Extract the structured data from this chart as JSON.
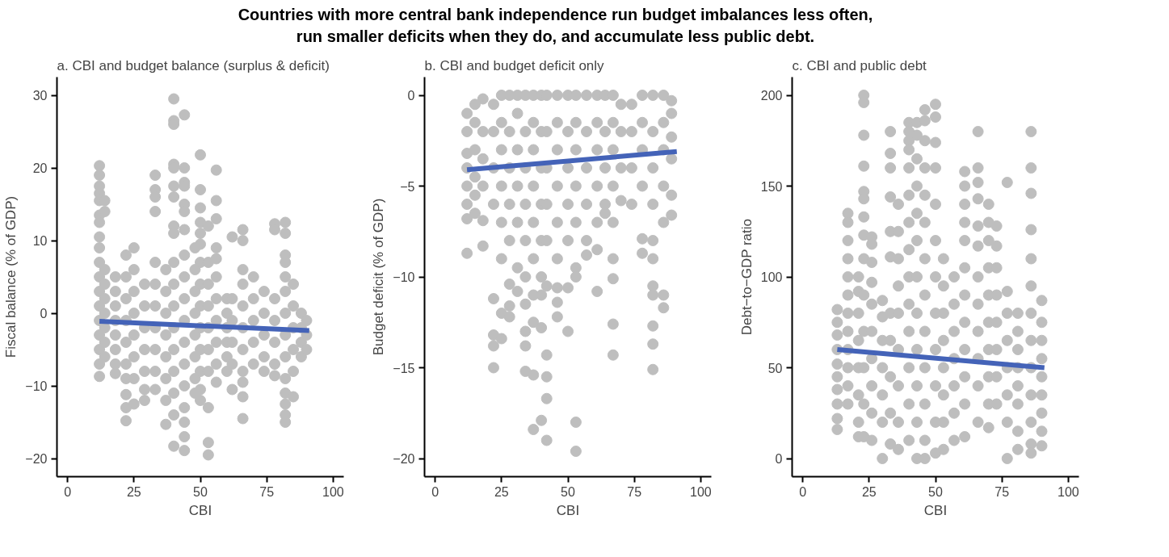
{
  "chart_data": [
    {
      "type": "scatter",
      "annotations": [
        "Countries with more central bank independence run budget imbalances less often,\nrun smaller deficits when they do, and accumulate less public debt."
      ],
      "title": "a. CBI and budget balance (surplus & deficit)",
      "xlabel": "CBI",
      "ylabel": "Fiscal balance (% of GDP)",
      "xlim": [
        -4,
        104
      ],
      "ylim": [
        -22.5,
        32.5
      ],
      "xticks": [
        0,
        25,
        50,
        75,
        100
      ],
      "yticks": [
        -20,
        -10,
        0,
        10,
        20,
        30
      ],
      "grid": false,
      "marker": "circle",
      "series": [
        {
          "color": "#bebebe",
          "x": [
            12,
            12,
            12,
            12,
            12,
            12,
            12,
            12,
            12,
            12,
            12,
            12,
            12,
            12,
            12,
            12,
            12,
            12,
            14,
            14,
            14,
            14,
            14,
            14,
            14,
            14,
            14,
            18,
            18,
            18,
            18,
            18,
            18,
            18,
            18,
            22,
            22,
            22,
            22,
            22,
            22,
            22,
            22,
            22,
            22,
            25,
            25,
            25,
            25,
            25,
            25,
            25,
            25,
            29,
            29,
            29,
            29,
            29,
            29,
            29,
            33,
            33,
            33,
            33,
            33,
            33,
            33,
            33,
            33,
            33,
            33,
            37,
            37,
            37,
            37,
            37,
            37,
            37,
            37,
            40,
            40,
            40,
            40,
            40,
            40,
            40,
            40,
            40,
            40,
            40,
            40,
            40,
            40,
            40,
            40,
            40,
            40,
            44,
            44,
            44,
            44,
            44,
            44,
            44,
            44,
            44,
            44,
            44,
            44,
            44,
            44,
            44,
            44,
            44,
            44,
            48,
            48,
            48,
            48,
            48,
            48,
            48,
            48,
            50,
            50,
            50,
            50,
            50,
            50,
            50,
            50,
            50,
            50,
            50,
            50,
            50,
            50,
            53,
            53,
            53,
            53,
            53,
            53,
            53,
            53,
            53,
            53,
            56,
            56,
            56,
            56,
            56,
            56,
            56,
            56,
            56,
            56,
            56,
            60,
            60,
            60,
            60,
            60,
            60,
            62,
            62,
            62,
            62,
            62,
            62,
            66,
            66,
            66,
            66,
            66,
            66,
            66,
            66,
            66,
            66,
            66,
            70,
            70,
            70,
            70,
            70,
            74,
            74,
            74,
            74,
            74,
            78,
            78,
            78,
            78,
            78,
            78,
            78,
            82,
            82,
            82,
            82,
            82,
            82,
            82,
            82,
            82,
            82,
            82,
            82,
            82,
            82,
            85,
            85,
            85,
            85,
            85,
            85,
            88,
            88,
            88,
            88,
            90,
            90,
            90
          ],
          "values": [
            20.3,
            19,
            17.5,
            16.5,
            15.5,
            13.5,
            12.5,
            10.5,
            9,
            7,
            5,
            3,
            1,
            -1,
            -3,
            -5,
            -7,
            -8.7,
            15.5,
            14,
            6,
            4,
            2,
            0,
            -2,
            -4,
            -6,
            5,
            3,
            1,
            -1,
            -3,
            -5,
            -7,
            -8.3,
            8,
            5,
            2,
            -1,
            -4,
            -7,
            -9,
            -11.2,
            -13,
            -14.8,
            9,
            6,
            3,
            0,
            -3,
            -6,
            -9,
            -12.5,
            4,
            1,
            -2,
            -5,
            -8,
            -10.5,
            -12,
            19,
            17,
            16,
            14,
            7,
            4,
            1,
            -2,
            -5,
            -8,
            -10.5,
            6,
            3,
            0,
            -3,
            -6,
            -9,
            -12,
            -15.3,
            29.5,
            26.5,
            26,
            20.5,
            20,
            17.5,
            16,
            12,
            11,
            7,
            4,
            1,
            -2,
            -5,
            -8,
            -11,
            -14,
            -18.3,
            27.3,
            20,
            18,
            17.5,
            15,
            14,
            11.5,
            8,
            5,
            2,
            -1,
            -4,
            -7,
            -10,
            -13,
            -15,
            -17,
            -18.9,
            9,
            6,
            3,
            0,
            -3,
            -6,
            -9,
            -11,
            21.8,
            17,
            14.5,
            12.5,
            11,
            9.5,
            7,
            4,
            1,
            -2,
            -5,
            -8,
            -10.5,
            -12,
            12,
            7,
            4,
            1,
            -2,
            -5,
            -8,
            -13,
            -17.8,
            -19.5,
            19.7,
            15.5,
            13,
            9,
            7.5,
            5,
            2,
            -1,
            -4,
            -7,
            -9.5,
            2,
            0,
            -2,
            -4,
            -6,
            -8,
            10.5,
            2,
            -1,
            -4,
            -7,
            -10.5,
            11.5,
            10,
            6,
            4,
            1,
            -2,
            -5,
            -8,
            -9.5,
            -11.5,
            -14.5,
            5,
            2,
            -1,
            -4,
            -7,
            3,
            0,
            -3,
            -6,
            -8,
            12.3,
            11.5,
            2,
            -1,
            -4,
            -7,
            -8.6,
            12.5,
            11,
            8,
            7,
            5,
            3,
            0,
            -3,
            -6,
            -9,
            -11,
            -12.5,
            -14,
            -15,
            4,
            1,
            -2,
            -5,
            -8,
            -11.5,
            0,
            -2,
            -4,
            -6,
            -1,
            -3,
            -5
          ]
        },
        {
          "type": "line",
          "marker": "none",
          "color": "#4463b8",
          "x": [
            12,
            91
          ],
          "values": [
            -1.1,
            -2.4
          ]
        }
      ]
    },
    {
      "type": "scatter",
      "title": "b. CBI and budget deficit only",
      "xlabel": "CBI",
      "ylabel": "Budget deficit (% of GDP)",
      "xlim": [
        -4,
        104
      ],
      "ylim": [
        -21,
        1
      ],
      "xticks": [
        0,
        25,
        50,
        75,
        100
      ],
      "yticks": [
        -20,
        -15,
        -10,
        -5,
        0
      ],
      "grid": false,
      "marker": "circle",
      "series": [
        {
          "color": "#bebebe",
          "x": [
            12,
            12,
            12,
            12,
            12,
            12,
            12,
            12,
            15,
            15,
            15,
            15,
            15,
            15,
            18,
            18,
            18,
            18,
            18,
            18,
            22,
            22,
            22,
            22,
            22,
            22,
            22,
            22,
            25,
            25,
            25,
            25,
            25,
            25,
            25,
            25,
            28,
            28,
            28,
            28,
            28,
            28,
            28,
            28,
            31,
            31,
            31,
            31,
            31,
            31,
            31,
            34,
            34,
            34,
            34,
            34,
            34,
            34,
            34,
            34,
            34,
            37,
            37,
            37,
            37,
            37,
            37,
            37,
            37,
            37,
            37,
            40,
            40,
            40,
            40,
            40,
            40,
            40,
            40,
            40,
            42,
            42,
            42,
            42,
            42,
            42,
            42,
            42,
            42,
            42,
            46,
            46,
            46,
            46,
            46,
            46,
            46,
            46,
            46,
            50,
            50,
            50,
            50,
            50,
            50,
            50,
            53,
            53,
            53,
            53,
            53,
            53,
            53,
            53,
            53,
            57,
            57,
            57,
            57,
            57,
            57,
            61,
            61,
            61,
            61,
            61,
            61,
            61,
            64,
            64,
            64,
            64,
            64,
            67,
            67,
            67,
            67,
            67,
            67,
            67,
            67,
            67,
            70,
            70,
            70,
            70,
            74,
            74,
            74,
            74,
            78,
            78,
            78,
            78,
            78,
            78,
            82,
            82,
            82,
            82,
            82,
            82,
            82,
            82,
            82,
            82,
            82,
            86,
            86,
            86,
            86,
            86,
            86,
            86,
            89,
            89,
            89,
            89,
            89,
            89
          ],
          "values": [
            -3.2,
            -2,
            -1,
            -4,
            -5,
            -6,
            -6.8,
            -8.7,
            -0.5,
            -1.5,
            -3,
            -4.5,
            -5.5,
            -6.5,
            -0.2,
            -2,
            -3.5,
            -5,
            -6.9,
            -8.3,
            -0.5,
            -2,
            -4,
            -6,
            -11.2,
            -13.2,
            -13.8,
            -15,
            0,
            -1.5,
            -3,
            -5,
            -7,
            -9,
            -12,
            -13.4,
            0,
            -2,
            -4,
            -6,
            -8,
            -10.4,
            -11.6,
            -12.2,
            0,
            -1,
            -3,
            -5,
            -7,
            -9.5,
            -10.8,
            0,
            -2,
            -4,
            -6,
            -8,
            -10,
            -11.5,
            -13,
            -13.8,
            -15.2,
            0,
            -1.5,
            -3,
            -5,
            -7,
            -9,
            -11,
            -12.5,
            -15.4,
            -18.4,
            0,
            -2,
            -4,
            -6,
            -8,
            -10,
            -11,
            -12.8,
            -17.9,
            0,
            -2,
            -4,
            -6,
            -8,
            -10.5,
            -14.3,
            -15.5,
            -16.7,
            -19,
            0,
            -1.5,
            -3,
            -5,
            -7,
            -9,
            -10.6,
            -11.4,
            -12.2,
            0,
            -2,
            -4,
            -6,
            -8,
            -10.6,
            -13,
            0,
            -1.5,
            -3,
            -5,
            -7,
            -9.5,
            -10,
            -18,
            -19.6,
            0,
            -2,
            -4,
            -6,
            -8,
            -8.8,
            0,
            -1.5,
            -3,
            -5,
            -7,
            -8.5,
            -10.8,
            0,
            -2,
            -4,
            -6,
            -6.5,
            0,
            -1.5,
            -3,
            -5,
            -7,
            -9,
            -10.1,
            -12.6,
            -14.3,
            -0.5,
            -2,
            -4,
            -5.8,
            -0.5,
            -2,
            -4,
            -6,
            0,
            -1.5,
            -3,
            -5,
            -7.9,
            -8.7,
            0,
            -2,
            -4,
            -6,
            -8,
            -9,
            -10.5,
            -11,
            -12.7,
            -13.7,
            -15.1,
            0,
            -1.5,
            -3,
            -5,
            -7,
            -11,
            -11.7,
            -0.3,
            -1,
            -2.3,
            -3.5,
            -5.5,
            -6.6
          ]
        },
        {
          "type": "line",
          "marker": "none",
          "color": "#4463b8",
          "x": [
            12,
            91
          ],
          "values": [
            -4.1,
            -3.1
          ]
        }
      ]
    },
    {
      "type": "scatter",
      "title": "c. CBI and public debt",
      "xlabel": "CBI",
      "ylabel": "Debt−to−GDP ratio",
      "xlim": [
        -4,
        104
      ],
      "ylim": [
        -10,
        210
      ],
      "xticks": [
        0,
        25,
        50,
        75,
        100
      ],
      "yticks": [
        0,
        50,
        100,
        150,
        200
      ],
      "grid": false,
      "marker": "circle",
      "series": [
        {
          "color": "#bebebe",
          "x": [
            13,
            13,
            13,
            13,
            13,
            13,
            13,
            13,
            13,
            13,
            17,
            17,
            17,
            17,
            17,
            17,
            17,
            17,
            17,
            17,
            17,
            17,
            21,
            21,
            21,
            21,
            21,
            21,
            21,
            21,
            23,
            23,
            23,
            23,
            23,
            23,
            23,
            23,
            23,
            23,
            23,
            23,
            23,
            23,
            26,
            26,
            26,
            26,
            26,
            26,
            26,
            26,
            26,
            26,
            30,
            30,
            30,
            30,
            30,
            30,
            30,
            33,
            33,
            33,
            33,
            33,
            33,
            33,
            33,
            33,
            33,
            33,
            36,
            36,
            36,
            36,
            36,
            36,
            36,
            36,
            36,
            40,
            40,
            40,
            40,
            40,
            40,
            40,
            40,
            40,
            40,
            40,
            40,
            40,
            40,
            43,
            43,
            43,
            43,
            43,
            43,
            43,
            43,
            43,
            43,
            43,
            43,
            46,
            46,
            46,
            46,
            46,
            46,
            46,
            46,
            46,
            46,
            46,
            46,
            46,
            50,
            50,
            50,
            50,
            50,
            50,
            50,
            50,
            50,
            50,
            50,
            50,
            53,
            53,
            53,
            53,
            53,
            53,
            53,
            53,
            57,
            57,
            57,
            57,
            57,
            57,
            57,
            61,
            61,
            61,
            61,
            61,
            61,
            61,
            61,
            61,
            61,
            61,
            61,
            66,
            66,
            66,
            66,
            66,
            66,
            66,
            66,
            66,
            66,
            66,
            66,
            70,
            70,
            70,
            70,
            70,
            70,
            70,
            70,
            70,
            70,
            73,
            73,
            73,
            73,
            73,
            73,
            73,
            73,
            77,
            77,
            77,
            77,
            77,
            77,
            77,
            77,
            81,
            81,
            81,
            81,
            81,
            81,
            81,
            81,
            86,
            86,
            86,
            86,
            86,
            86,
            86,
            86,
            86,
            86,
            86,
            86,
            86,
            90,
            90,
            90,
            90,
            90,
            90,
            90,
            90,
            90
          ],
          "values": [
            82,
            75,
            68,
            60,
            52,
            45,
            38,
            30,
            22,
            16,
            135,
            130,
            120,
            110,
            100,
            90,
            80,
            70,
            60,
            50,
            40,
            30,
            100,
            92,
            80,
            65,
            50,
            35,
            20,
            12,
            200,
            196,
            178,
            161,
            147,
            143,
            133,
            123,
            110,
            90,
            70,
            50,
            30,
            12,
            122,
            118,
            108,
            97,
            85,
            70,
            55,
            40,
            25,
            10,
            87,
            78,
            65,
            50,
            35,
            20,
            0,
            180,
            168,
            160,
            144,
            125,
            111,
            80,
            65,
            45,
            25,
            8,
            140,
            125,
            110,
            95,
            80,
            60,
            40,
            20,
            5,
            185,
            180,
            175,
            170,
            160,
            145,
            130,
            115,
            100,
            85,
            70,
            50,
            30,
            10,
            185,
            178,
            165,
            150,
            135,
            120,
            100,
            80,
            60,
            40,
            20,
            0,
            192,
            186,
            175,
            160,
            145,
            130,
            110,
            90,
            70,
            50,
            30,
            10,
            0,
            195,
            188,
            174,
            160,
            140,
            120,
            100,
            80,
            60,
            40,
            20,
            3,
            110,
            95,
            80,
            65,
            50,
            35,
            20,
            5,
            100,
            85,
            70,
            55,
            40,
            25,
            10,
            158,
            150,
            140,
            130,
            120,
            105,
            90,
            75,
            60,
            45,
            30,
            12,
            180,
            160,
            152,
            143,
            128,
            117,
            100,
            85,
            70,
            55,
            40,
            20,
            140,
            130,
            120,
            105,
            90,
            75,
            60,
            45,
            30,
            17,
            128,
            117,
            105,
            90,
            75,
            60,
            45,
            30,
            152,
            92,
            80,
            65,
            50,
            35,
            20,
            0,
            80,
            70,
            60,
            50,
            40,
            30,
            15,
            5,
            180,
            160,
            146,
            126,
            110,
            95,
            80,
            65,
            50,
            35,
            20,
            8,
            3,
            87,
            75,
            65,
            55,
            45,
            35,
            25,
            15,
            7
          ]
        },
        {
          "type": "line",
          "marker": "none",
          "color": "#4463b8",
          "x": [
            13,
            91
          ],
          "values": [
            60,
            50
          ]
        }
      ]
    }
  ]
}
